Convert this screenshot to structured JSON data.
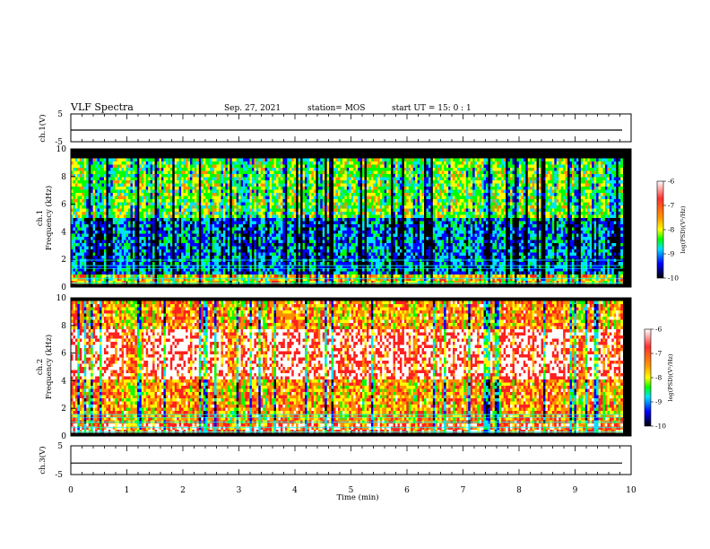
{
  "header": {
    "title": "VLF Spectra",
    "date": "Sep. 27, 2021",
    "station": "station= MOS",
    "start": "start  UT =   15: 0  : 1"
  },
  "chart_data": [
    {
      "type": "line",
      "id": "ch1-waveform",
      "ylabel": "ch.1(V)",
      "ylim": [
        -5,
        5
      ],
      "yticks": [
        "5",
        "0",
        "-5"
      ],
      "baseline_v": -0.8,
      "xlim": [
        0,
        10
      ]
    },
    {
      "type": "heatmap",
      "id": "ch1-spectrogram",
      "ylabel": [
        "ch.1",
        "Frequency  (kHz)"
      ],
      "ylim": [
        0,
        10
      ],
      "yticks": [
        "0",
        "2",
        "4",
        "6",
        "8",
        "10"
      ],
      "xlim": [
        0,
        10
      ],
      "data_end_min": 9.85,
      "band_khz": [
        0.3,
        9.3
      ],
      "dominant_level": -8,
      "hum_lines_khz": [
        0.3,
        0.6,
        1.35,
        1.55,
        1.95
      ],
      "colorbar": {
        "label": "log(PSD)(V²/Hz)",
        "range": [
          -10,
          -6
        ],
        "ticks": [
          "-6",
          "-7",
          "-8",
          "-9",
          "-10"
        ]
      }
    },
    {
      "type": "heatmap",
      "id": "ch2-spectrogram",
      "ylabel": [
        "ch.2",
        "Frequency  (kHz)"
      ],
      "ylim": [
        0,
        10
      ],
      "yticks": [
        "0",
        "2",
        "4",
        "6",
        "8",
        "10"
      ],
      "xlim": [
        0,
        10
      ],
      "data_end_min": 9.85,
      "band_khz": [
        0.2,
        9.8
      ],
      "dominant_level": -7,
      "hot_band_khz": [
        4.2,
        7.8
      ],
      "hum_lines_khz": [
        0.3,
        0.6,
        1.0,
        1.35,
        1.55
      ],
      "colorbar": {
        "label": "log(PSD)(V²/Hz)",
        "range": [
          -10,
          -6
        ],
        "ticks": [
          "-6",
          "-7",
          "-8",
          "-9",
          "-10"
        ]
      }
    },
    {
      "type": "line",
      "id": "ch3-waveform",
      "ylabel": "ch.3(V)",
      "ylim": [
        -5,
        5
      ],
      "yticks": [
        "5",
        "0",
        "-5"
      ],
      "baseline_v": -1.0,
      "xlim": [
        0,
        10
      ]
    }
  ],
  "time_axis": {
    "label": "Time  (min)",
    "ticks": [
      "0",
      "1",
      "2",
      "3",
      "4",
      "5",
      "6",
      "7",
      "8",
      "9",
      "10"
    ]
  },
  "colors": {
    "spectrum_scale": [
      "#ffffff",
      "#ff2020",
      "#ff8c00",
      "#ffff00",
      "#00ff00",
      "#00e0ff",
      "#0000ff",
      "#000000"
    ]
  }
}
